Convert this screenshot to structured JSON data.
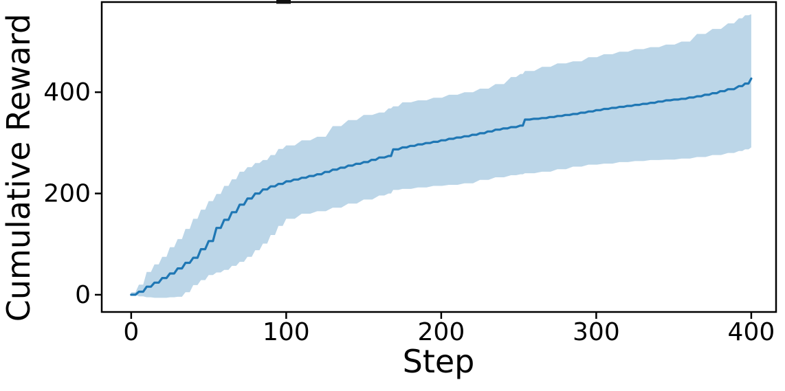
{
  "chart_data": {
    "type": "line",
    "title": "",
    "xlabel": "Step",
    "ylabel": "Cumulative Reward",
    "x_ticks": [
      0,
      100,
      200,
      300,
      400
    ],
    "y_ticks": [
      0,
      200,
      400
    ],
    "xlim": [
      -19,
      416
    ],
    "ylim": [
      -34,
      578
    ],
    "grid": false,
    "legend_position": "none",
    "colors": {
      "line": "#1f77b4",
      "band": "#bcd6e8",
      "axis": "#000000"
    },
    "steps": [
      0,
      5,
      10,
      15,
      20,
      25,
      30,
      35,
      40,
      45,
      50,
      55,
      60,
      65,
      70,
      75,
      80,
      85,
      90,
      95,
      100,
      110,
      120,
      130,
      140,
      150,
      160,
      166,
      169,
      175,
      185,
      195,
      205,
      215,
      225,
      235,
      245,
      251,
      254,
      265,
      275,
      285,
      295,
      305,
      315,
      325,
      335,
      345,
      355,
      365,
      375,
      385,
      392,
      396,
      400
    ],
    "series": [
      {
        "name": "mean cumulative reward",
        "role": "mean",
        "values": [
          0,
          6,
          16,
          24,
          33,
          42,
          52,
          63,
          73,
          90,
          106,
          132,
          148,
          163,
          178,
          190,
          200,
          208,
          214,
          219,
          224,
          231,
          238,
          247,
          255,
          262,
          271,
          274,
          287,
          291,
          297,
          302,
          308,
          313,
          319,
          326,
          331,
          334,
          346,
          349,
          353,
          357,
          362,
          367,
          371,
          375,
          379,
          384,
          387,
          392,
          398,
          406,
          412,
          417,
          427
        ]
      },
      {
        "name": "band lower",
        "role": "band_lower",
        "values": [
          0,
          -3,
          -5,
          -6,
          -6,
          -5,
          -4,
          5,
          19,
          29,
          39,
          44,
          49,
          57,
          65,
          75,
          88,
          101,
          118,
          136,
          150,
          160,
          165,
          172,
          180,
          188,
          196,
          200,
          207,
          209,
          212,
          215,
          217,
          220,
          227,
          232,
          236,
          238,
          240,
          243,
          248,
          253,
          257,
          259,
          262,
          264,
          266,
          267,
          269,
          272,
          276,
          280,
          284,
          287,
          291
        ]
      },
      {
        "name": "band upper",
        "role": "band_upper",
        "values": [
          5,
          20,
          45,
          60,
          75,
          94,
          110,
          130,
          150,
          168,
          185,
          199,
          215,
          228,
          243,
          252,
          260,
          266,
          276,
          288,
          295,
          305,
          312,
          333,
          345,
          355,
          360,
          368,
          372,
          380,
          384,
          389,
          395,
          400,
          407,
          416,
          430,
          436,
          442,
          450,
          457,
          461,
          469,
          475,
          480,
          485,
          489,
          494,
          500,
          515,
          525,
          536,
          546,
          552,
          554
        ]
      }
    ]
  }
}
